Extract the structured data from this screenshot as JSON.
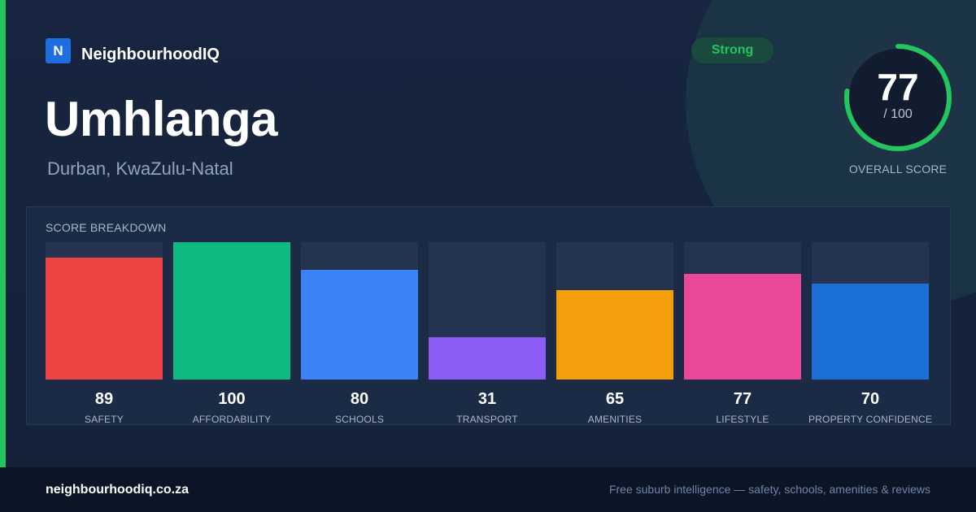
{
  "brand": {
    "logo_letter": "N",
    "name": "NeighbourhoodIQ"
  },
  "suburb": {
    "name": "Umhlanga",
    "location": "Durban, KwaZulu-Natal"
  },
  "rating": {
    "label": "Strong"
  },
  "overall": {
    "score": "77",
    "max_label": "/ 100",
    "caption": "OVERALL SCORE",
    "fraction": 0.77
  },
  "colors": {
    "accent": "#22c55e",
    "ring_track": "#1f3346"
  },
  "chart_data": {
    "type": "bar",
    "title": "SCORE BREAKDOWN",
    "ylim": [
      0,
      100
    ],
    "categories": [
      "SAFETY",
      "AFFORDABILITY",
      "SCHOOLS",
      "TRANSPORT",
      "AMENITIES",
      "LIFESTYLE",
      "PROPERTY CONFIDENCE"
    ],
    "values": [
      89,
      100,
      80,
      31,
      65,
      77,
      70
    ],
    "colors": [
      "#ef4444",
      "#10b981",
      "#3b82f6",
      "#8b5cf6",
      "#f59e0b",
      "#ec4899",
      "#1d6fd8"
    ],
    "grid": false,
    "legend": "none"
  },
  "footer": {
    "domain": "neighbourhoodiq.co.za",
    "tagline": "Free suburb intelligence — safety, schools, amenities & reviews"
  }
}
